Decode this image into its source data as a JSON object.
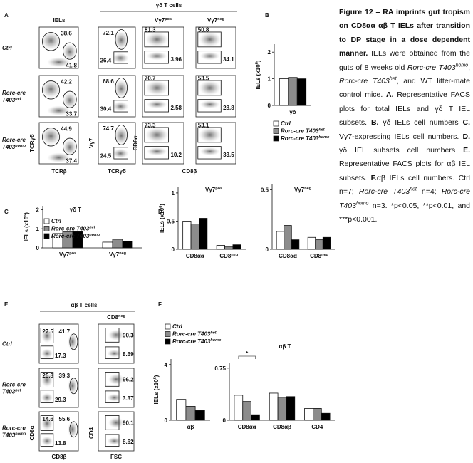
{
  "panel_letters": [
    "A",
    "B",
    "C",
    "D",
    "E",
    "F"
  ],
  "caption": {
    "segments": [
      {
        "text": "Figure 12 – RA imprints gut tropism on CD8αα αβ T IELs after transition to DP stage in a dose dependent manner.",
        "style": "bold"
      },
      {
        "text": " IELs were obtained from the guts of 8 weeks old ",
        "style": "normal"
      },
      {
        "text": "Rorc-cre T403",
        "style": "italic"
      },
      {
        "text": "homo",
        "style": "italic-sup"
      },
      {
        "text": ", ",
        "style": "normal"
      },
      {
        "text": "Rorc-cre T403",
        "style": "italic"
      },
      {
        "text": "het",
        "style": "italic-sup"
      },
      {
        "text": ", and WT litter-mate control mice. ",
        "style": "normal"
      },
      {
        "text": "A.",
        "style": "bold"
      },
      {
        "text": " Representative FACS plots for total IELs and γδ T IEL subsets. ",
        "style": "normal"
      },
      {
        "text": "B.",
        "style": "bold"
      },
      {
        "text": " γδ IELs cell numbers ",
        "style": "normal"
      },
      {
        "text": "C.",
        "style": "bold"
      },
      {
        "text": " Vγ7-expressing IELs cell numbers. ",
        "style": "normal"
      },
      {
        "text": "D.",
        "style": "bold"
      },
      {
        "text": " γδ IEL subsets cell numbers ",
        "style": "normal"
      },
      {
        "text": "E.",
        "style": "bold"
      },
      {
        "text": " Representative FACS plots for αβ IEL subsets. ",
        "style": "normal"
      },
      {
        "text": "F.",
        "style": "bold"
      },
      {
        "text": "αβ IELs cell numbers. Ctrl n=7; ",
        "style": "normal"
      },
      {
        "text": "Rorc-cre T403",
        "style": "italic"
      },
      {
        "text": "het",
        "style": "italic-sup"
      },
      {
        "text": " n=4; ",
        "style": "normal"
      },
      {
        "text": "Rorc-cre T403",
        "style": "italic"
      },
      {
        "text": "homo",
        "style": "italic-sup"
      },
      {
        "text": " n=3. *p<0.05, **p<0.01, and ***p<0.001.",
        "style": "normal"
      }
    ]
  },
  "facs_A": {
    "group_title": "γδ T cells",
    "col_titles": [
      {
        "text": "IELs"
      },
      {
        "text": "Vγ7",
        "sup": "pos"
      },
      {
        "text": "Vγ7",
        "sup": "neg"
      }
    ],
    "row_labels": [
      {
        "lines": [
          "Ctrl"
        ]
      },
      {
        "lines": [
          "Rorc-cre",
          "T403"
        ],
        "sup": "het"
      },
      {
        "lines": [
          "Rorc-cre",
          "T403"
        ],
        "sup": "homo"
      }
    ],
    "axes": [
      {
        "y": "TCRγδ",
        "x": "TCRβ"
      },
      {
        "y": "Vγ7",
        "x": "TCRγδ"
      },
      {
        "y": "CD8α",
        "x": "CD8β"
      }
    ],
    "gates": [
      [
        [
          38.6,
          41.8
        ],
        [
          72.1,
          26.4
        ],
        [
          81.3,
          3.96
        ],
        [
          50.8,
          34.1
        ]
      ],
      [
        [
          42.2,
          33.7
        ],
        [
          68.6,
          30.4
        ],
        [
          70.7,
          2.58
        ],
        [
          53.5,
          28.8
        ]
      ],
      [
        [
          44.9,
          37.4
        ],
        [
          74.7,
          24.5
        ],
        [
          73.3,
          10.2
        ],
        [
          53.1,
          33.5
        ]
      ]
    ]
  },
  "facs_E": {
    "group_title": "αβ T cells",
    "col_title": {
      "text": "CD8",
      "sup": "neg"
    },
    "row_labels": [
      {
        "lines": [
          "Ctrl"
        ]
      },
      {
        "lines": [
          "Rorc-cre",
          "T403"
        ],
        "sup": "het"
      },
      {
        "lines": [
          "Rorc-cre",
          "T403"
        ],
        "sup": "homo"
      }
    ],
    "axes": [
      {
        "y": "CD8α",
        "x": "CD8β"
      },
      {
        "y": "CD4",
        "x": "FSC"
      }
    ],
    "gates": [
      [
        [
          27.5,
          41.7,
          17.3
        ],
        [
          90.3,
          8.69
        ]
      ],
      [
        [
          25.8,
          39.3,
          29.3
        ],
        [
          96.2,
          3.37
        ]
      ],
      [
        [
          14.6,
          55.6,
          13.8
        ],
        [
          90.1,
          8.62
        ]
      ]
    ]
  },
  "chart_data": [
    {
      "type": "bar",
      "ylabel": {
        "text": "IELs (x10",
        "sup": "6",
        "after": ")"
      },
      "categories": [
        {
          "text": "γδ"
        }
      ],
      "ylim": [
        0,
        2.3
      ],
      "yticks": [
        0,
        1,
        2
      ],
      "legend": true,
      "series": [
        {
          "name": "Ctrl",
          "color": "#ffffff",
          "values": [
            1.0
          ]
        },
        {
          "name": "Rorc-cre T403",
          "name_sup": "het",
          "color": "#8c8c8c",
          "values": [
            1.05
          ]
        },
        {
          "name": "Rorc-cre T403",
          "name_sup": "homo",
          "color": "#000000",
          "values": [
            1.0
          ]
        }
      ]
    },
    {
      "type": "bar",
      "title": "γδ T",
      "ylabel": {
        "text": "IELs (x10",
        "sup": "6",
        "after": ")"
      },
      "categories": [
        {
          "text": "Vγ7",
          "sup": "pos"
        },
        {
          "text": "Vγ7",
          "sup": "neg"
        }
      ],
      "ylim": [
        0,
        2.2
      ],
      "yticks": [
        0,
        1,
        2
      ],
      "legend": true,
      "series": [
        {
          "name": "Ctrl",
          "color": "#ffffff",
          "values": [
            0.75,
            0.3
          ]
        },
        {
          "name": "Rorc-cre T403",
          "name_sup": "het",
          "color": "#8c8c8c",
          "values": [
            0.85,
            0.45
          ]
        },
        {
          "name": "Rorc-cre T403",
          "name_sup": "homo",
          "color": "#000000",
          "values": [
            0.85,
            0.35
          ]
        }
      ]
    },
    {
      "type": "bar",
      "title": {
        "text": "Vγ7",
        "sup": "pos"
      },
      "ylabel": {
        "text": "IELs (x10",
        "sup": "6",
        "after": ")"
      },
      "categories": [
        {
          "text": "CD8αα"
        },
        {
          "text": "CD8",
          "sup": "neg"
        }
      ],
      "ylim": [
        0,
        1.1
      ],
      "yticks": [
        0,
        0.5,
        1
      ],
      "legend": false,
      "series": [
        {
          "color": "#ffffff",
          "values": [
            0.5,
            0.07
          ]
        },
        {
          "color": "#8c8c8c",
          "values": [
            0.45,
            0.05
          ]
        },
        {
          "color": "#000000",
          "values": [
            0.55,
            0.08
          ]
        }
      ]
    },
    {
      "type": "bar",
      "title": {
        "text": "Vγ7",
        "sup": "neg"
      },
      "categories": [
        {
          "text": "CD8αα"
        },
        {
          "text": "CD8",
          "sup": "neg"
        }
      ],
      "ylim": [
        0,
        0.55
      ],
      "yticks": [
        0,
        0.5
      ],
      "legend": false,
      "series": [
        {
          "color": "#ffffff",
          "values": [
            0.15,
            0.1
          ]
        },
        {
          "color": "#8c8c8c",
          "values": [
            0.2,
            0.08
          ]
        },
        {
          "color": "#000000",
          "values": [
            0.08,
            0.1
          ]
        }
      ]
    },
    {
      "type": "bar",
      "ylabel": {
        "text": "IELs (x10",
        "sup": "6",
        "after": ")"
      },
      "categories": [
        {
          "text": "αβ"
        }
      ],
      "ylim": [
        0,
        4.4
      ],
      "yticks": [
        0,
        4
      ],
      "legend": true,
      "series": [
        {
          "name": "Ctrl",
          "color": "#ffffff",
          "values": [
            1.5
          ]
        },
        {
          "name": "Rorc-cre T403",
          "name_sup": "het",
          "color": "#8c8c8c",
          "values": [
            1.0
          ]
        },
        {
          "name": "Rorc-cre T403",
          "name_sup": "homo",
          "color": "#000000",
          "values": [
            0.7
          ]
        }
      ]
    },
    {
      "type": "bar",
      "title": "αβ T",
      "annotation": "*",
      "categories": [
        {
          "text": "CD8αα"
        },
        {
          "text": "CD8αβ"
        },
        {
          "text": "CD4"
        }
      ],
      "ylim": [
        0,
        0.82
      ],
      "yticks": [
        0,
        0.75
      ],
      "legend": false,
      "series": [
        {
          "color": "#ffffff",
          "values": [
            0.36,
            0.39,
            0.17
          ]
        },
        {
          "color": "#8c8c8c",
          "values": [
            0.27,
            0.33,
            0.17
          ]
        },
        {
          "color": "#000000",
          "values": [
            0.08,
            0.34,
            0.1
          ]
        }
      ]
    }
  ]
}
